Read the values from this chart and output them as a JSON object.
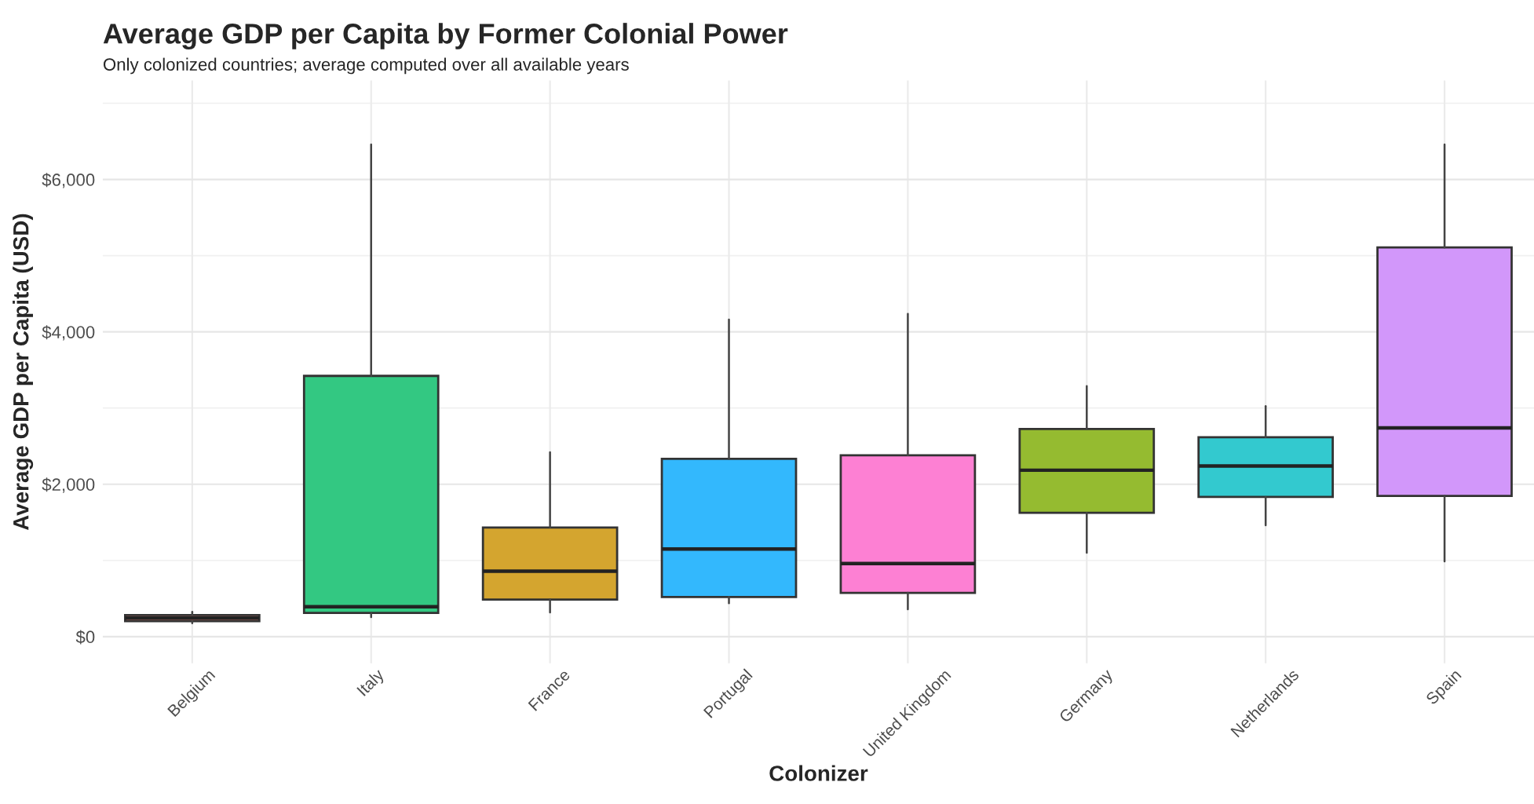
{
  "chart_data": {
    "type": "box",
    "title": "Average GDP per Capita by Former Colonial Power",
    "subtitle": "Only colonized countries; average computed over all available years",
    "xlabel": "Colonizer",
    "ylabel": "Average GDP per Capita (USD)",
    "categories": [
      "Belgium",
      "Italy",
      "France",
      "Portugal",
      "United Kingdom",
      "Germany",
      "Netherlands",
      "Spain"
    ],
    "colors": [
      "#e8837a",
      "#33c882",
      "#d4a52f",
      "#33b8fd",
      "#fd80d3",
      "#95bb30",
      "#33c9cf",
      "#d297fa"
    ],
    "boxes": [
      {
        "low": 175,
        "q1": 203,
        "median": 244,
        "q3": 284,
        "high": 325
      },
      {
        "low": 256,
        "q1": 311,
        "median": 392,
        "q3": 3422,
        "high": 6460
      },
      {
        "low": 317,
        "q1": 487,
        "median": 859,
        "q3": 1433,
        "high": 2420
      },
      {
        "low": 440,
        "q1": 520,
        "median": 1149,
        "q3": 2334,
        "high": 4160
      },
      {
        "low": 358,
        "q1": 575,
        "median": 960,
        "q3": 2381,
        "high": 4235
      },
      {
        "low": 1102,
        "q1": 1624,
        "median": 2184,
        "q3": 2726,
        "high": 3288
      },
      {
        "low": 1461,
        "q1": 1833,
        "median": 2239,
        "q3": 2618,
        "high": 3024
      },
      {
        "low": 987,
        "q1": 1847,
        "median": 2740,
        "q3": 5107,
        "high": 6460
      }
    ],
    "ylim": [
      -350,
      7300
    ],
    "yticks": [
      {
        "value": 0,
        "label": "$0"
      },
      {
        "value": 2000,
        "label": "$2,000"
      },
      {
        "value": 4000,
        "label": "$4,000"
      },
      {
        "value": 6000,
        "label": "$6,000"
      }
    ],
    "grid": true,
    "legend": false
  }
}
